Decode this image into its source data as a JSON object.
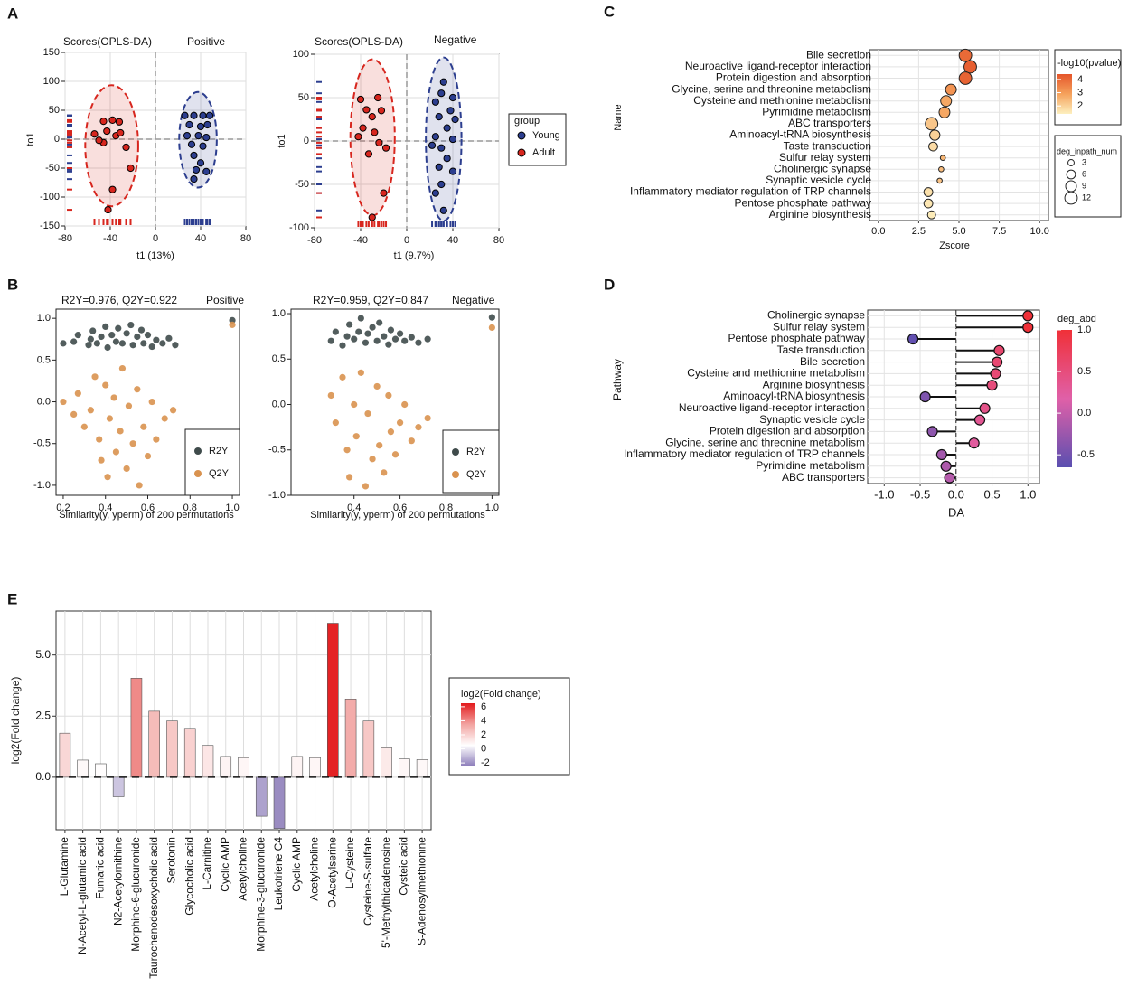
{
  "panel_labels": [
    "A",
    "B",
    "C",
    "D",
    "E"
  ],
  "chart_data": [
    {
      "type": "scatter",
      "title": "Scores(OPLS-DA)",
      "annotation": "Positive",
      "xlabel": "t1 (13%)",
      "ylabel": "to1",
      "xlim": [
        -80,
        80
      ],
      "xticks": [
        -80,
        -40,
        0,
        40,
        80
      ],
      "ylim": [
        -150,
        150
      ],
      "yticks": [
        -150,
        -100,
        -50,
        0,
        50,
        100,
        150
      ],
      "grid": true,
      "zero_lines": true,
      "ellipse": true,
      "rug": true,
      "marker_edge": "#000000",
      "series": [
        {
          "color": "#2c3e8f",
          "x": [
            26,
            34,
            42,
            48,
            30,
            40,
            46,
            28,
            38,
            45,
            32,
            42,
            34,
            40,
            36,
            34,
            45
          ],
          "values": [
            41,
            41,
            41,
            41,
            25,
            22,
            25,
            6,
            6,
            3,
            -9,
            -12,
            -28,
            -41,
            -53,
            -69,
            -56
          ]
        },
        {
          "color": "#d7261e",
          "x": [
            -46,
            -38,
            -32,
            -54,
            -43,
            -35,
            -31,
            -46,
            -26,
            -22,
            -38,
            -42,
            -50
          ],
          "values": [
            31,
            33,
            30,
            9,
            14,
            6,
            11,
            -6,
            -14,
            -50,
            -87,
            -122,
            -2
          ]
        }
      ]
    },
    {
      "type": "scatter",
      "title": "Scores(OPLS-DA)",
      "annotation": "Negative",
      "xlabel": "t1 (9.7%)",
      "ylabel": "to1",
      "xlim": [
        -80,
        80
      ],
      "xticks": [
        -80,
        -40,
        0,
        40,
        80
      ],
      "ylim": [
        -100,
        100
      ],
      "yticks": [
        -100,
        -50,
        0,
        50,
        100
      ],
      "grid": true,
      "zero_lines": true,
      "ellipse": true,
      "rug": true,
      "marker_edge": "#000000",
      "legend": "right",
      "legend_title": "group",
      "series": [
        {
          "name": "Young",
          "color": "#2c3e8f",
          "x": [
            32,
            30,
            40,
            25,
            38,
            28,
            42,
            35,
            25,
            40,
            30,
            22,
            35,
            28,
            40,
            30,
            25,
            32
          ],
          "values": [
            68,
            55,
            50,
            45,
            35,
            28,
            25,
            15,
            5,
            2,
            -8,
            -5,
            -20,
            -30,
            -35,
            -50,
            -60,
            -80
          ]
        },
        {
          "name": "Adult",
          "color": "#d7261e",
          "x": [
            -40,
            -25,
            -35,
            -22,
            -30,
            -38,
            -28,
            -42,
            -24,
            -18,
            -33,
            -20,
            -30
          ],
          "values": [
            48,
            50,
            36,
            35,
            28,
            15,
            10,
            5,
            -2,
            -8,
            -15,
            -60,
            -88
          ]
        }
      ]
    },
    {
      "type": "scatter",
      "title": "R2Y=0.976, Q2Y=0.922",
      "annotation": "Positive",
      "xlabel": "Similarity(y, yperm) of 200 permutations",
      "xlim": [
        0.166,
        1.034
      ],
      "xticks": [
        0.2,
        0.4,
        0.6,
        0.8,
        {
          "value": 1,
          "label": "1.0"
        }
      ],
      "ylim": [
        -1.12,
        1.11
      ],
      "yticks": [
        {
          "value": -1,
          "label": "-1.0"
        },
        -0.5,
        {
          "value": 0,
          "label": "0.0"
        },
        0.5,
        {
          "value": 1,
          "label": "1.0"
        }
      ],
      "grid": false,
      "legend": "lower right",
      "series": [
        {
          "name": "R2Y",
          "color": "#3f4b4b",
          "x": [
            0.2,
            0.25,
            0.27,
            0.32,
            0.33,
            0.34,
            0.36,
            0.38,
            0.4,
            0.41,
            0.43,
            0.45,
            0.46,
            0.48,
            0.5,
            0.52,
            0.53,
            0.55,
            0.57,
            0.58,
            0.6,
            0.62,
            0.64,
            0.67,
            0.7,
            0.73,
            1.0
          ],
          "values": [
            0.7,
            0.72,
            0.8,
            0.68,
            0.75,
            0.85,
            0.7,
            0.78,
            0.9,
            0.65,
            0.8,
            0.72,
            0.88,
            0.7,
            0.82,
            0.92,
            0.68,
            0.78,
            0.86,
            0.7,
            0.8,
            0.66,
            0.74,
            0.7,
            0.76,
            0.68,
            0.976
          ]
        },
        {
          "name": "Q2Y",
          "color": "#d9924f",
          "x": [
            0.2,
            0.25,
            0.27,
            0.3,
            0.33,
            0.35,
            0.37,
            0.38,
            0.4,
            0.41,
            0.42,
            0.44,
            0.45,
            0.47,
            0.48,
            0.5,
            0.51,
            0.53,
            0.55,
            0.56,
            0.58,
            0.6,
            0.62,
            0.64,
            0.68,
            0.72,
            1.0
          ],
          "values": [
            0.0,
            -0.15,
            0.1,
            -0.3,
            -0.1,
            0.3,
            -0.45,
            -0.7,
            0.2,
            -0.9,
            -0.2,
            0.05,
            -0.6,
            -0.35,
            0.4,
            -0.8,
            -0.05,
            -0.5,
            0.15,
            -1.0,
            -0.3,
            -0.65,
            0.0,
            -0.45,
            -0.2,
            -0.1,
            0.922
          ]
        }
      ]
    },
    {
      "type": "scatter",
      "title": "R2Y=0.959, Q2Y=0.847",
      "annotation": "Negative",
      "xlabel": "Similarity(y, yperm) of 200 permutations",
      "xlim": [
        0.126,
        1.03
      ],
      "xticks": [
        0.4,
        0.6,
        0.8,
        {
          "value": 1,
          "label": "1.0"
        }
      ],
      "ylim": [
        -1.0,
        1.05
      ],
      "yticks": [
        {
          "value": -1,
          "label": "-1.0"
        },
        -0.5,
        {
          "value": 0,
          "label": "0.0"
        },
        0.5,
        {
          "value": 1,
          "label": "1.0"
        }
      ],
      "grid": false,
      "legend": "lower right",
      "series": [
        {
          "name": "R2Y",
          "color": "#3f4b4b",
          "x": [
            0.3,
            0.32,
            0.35,
            0.37,
            0.38,
            0.4,
            0.42,
            0.43,
            0.45,
            0.46,
            0.48,
            0.5,
            0.51,
            0.53,
            0.55,
            0.56,
            0.58,
            0.6,
            0.62,
            0.65,
            0.68,
            0.72,
            1.0
          ],
          "values": [
            0.7,
            0.8,
            0.65,
            0.75,
            0.88,
            0.72,
            0.8,
            0.95,
            0.68,
            0.78,
            0.85,
            0.7,
            0.9,
            0.75,
            0.66,
            0.82,
            0.72,
            0.78,
            0.7,
            0.74,
            0.68,
            0.72,
            0.959
          ]
        },
        {
          "name": "Q2Y",
          "color": "#d9924f",
          "x": [
            0.3,
            0.32,
            0.35,
            0.37,
            0.38,
            0.4,
            0.41,
            0.43,
            0.45,
            0.46,
            0.48,
            0.5,
            0.51,
            0.53,
            0.55,
            0.56,
            0.58,
            0.6,
            0.62,
            0.65,
            0.68,
            0.72,
            1.0
          ],
          "values": [
            0.1,
            -0.2,
            0.3,
            -0.5,
            -0.8,
            0.0,
            -0.35,
            0.35,
            -0.9,
            -0.1,
            -0.6,
            0.2,
            -0.45,
            -0.75,
            0.1,
            -0.3,
            -0.55,
            -0.2,
            0.0,
            -0.4,
            -0.25,
            -0.15,
            0.847
          ]
        }
      ]
    },
    {
      "type": "bubble",
      "xlabel": "Zscore",
      "ylabel": "Name",
      "categories": [
        "Bile secretion",
        "Neuroactive ligand-receptor interaction",
        "Protein digestion and absorption",
        "Glycine, serine and threonine metabolism",
        "Cysteine and methionine metabolism",
        "Pyrimidine metabolism",
        "ABC transporters",
        "Aminoacyl-tRNA biosynthesis",
        "Taste transduction",
        "Sulfur relay system",
        "Cholinergic synapse",
        "Synaptic vesicle cycle",
        "Inflammatory mediator regulation of TRP channels",
        "Pentose phosphate pathway",
        "Arginine biosynthesis"
      ],
      "values": [
        5.4,
        5.7,
        5.4,
        4.5,
        4.2,
        4.1,
        3.3,
        3.5,
        3.4,
        4.0,
        3.9,
        3.8,
        3.1,
        3.1,
        3.3
      ],
      "sizes": [
        12,
        12,
        12,
        9,
        9,
        9,
        12,
        8,
        6,
        2,
        2,
        2,
        6,
        6,
        5
      ],
      "color_values": [
        4.0,
        4.2,
        4.1,
        3.2,
        2.8,
        2.8,
        2.2,
        2.0,
        1.8,
        2.5,
        2.4,
        2.3,
        1.7,
        1.6,
        1.5
      ],
      "xlim": [
        -0.55,
        10.55
      ],
      "xticks": [
        {
          "value": 0,
          "label": "0.0"
        },
        2.5,
        {
          "value": 5,
          "label": "5.0"
        },
        7.5,
        {
          "value": 10,
          "label": "10.0"
        }
      ],
      "grid": true,
      "color_legend_title": "-log10(pvalue)",
      "color_lim": [
        1.4,
        4.4
      ],
      "color_ticks": [
        4,
        3,
        2
      ],
      "colors": [
        "#fdf0bf",
        "#f5a25c",
        "#e5552a"
      ],
      "size_legend_title": "deg_inpath_num",
      "size_ticks": [
        3,
        6,
        9,
        12
      ]
    },
    {
      "type": "lollipop",
      "xlabel": "DA",
      "ylabel": "Pathway",
      "categories": [
        "Cholinergic synapse",
        "Sulfur relay system",
        "Pentose phosphate pathway",
        "Taste transduction",
        "Bile secretion",
        "Cysteine and methionine metabolism",
        "Arginine biosynthesis",
        "Aminoacyl-tRNA biosynthesis",
        "Neuroactive ligand-receptor interaction",
        "Synaptic vesicle cycle",
        "Protein digestion and absorption",
        "Glycine, serine and threonine metabolism",
        "Inflammatory mediator regulation of TRP channels",
        "Pyrimidine metabolism",
        "ABC transporters"
      ],
      "values": [
        1.0,
        1.0,
        -0.6,
        0.6,
        0.57,
        0.55,
        0.5,
        -0.43,
        0.4,
        0.33,
        -0.33,
        0.25,
        -0.2,
        -0.14,
        -0.09
      ],
      "xlim": [
        -1.23,
        1.16
      ],
      "xticks": [
        {
          "value": -1,
          "label": "-1.0"
        },
        -0.5,
        {
          "value": 0,
          "label": "0.0"
        },
        0.5,
        {
          "value": 1,
          "label": "1.0"
        }
      ],
      "grid": true,
      "color_legend_title": "deg_abd",
      "color_lim": [
        -0.65,
        1.0
      ],
      "colors": [
        "#5a4fb0",
        "#e060a8",
        "#f03038"
      ],
      "color_ticks": [
        {
          "value": 1,
          "label": "1.0"
        },
        0.5,
        {
          "value": 0,
          "label": "0.0"
        },
        -0.5
      ]
    },
    {
      "type": "bar",
      "ylabel": "log2(Fold change)",
      "categories": [
        "L-Glutamine",
        "N-Acetyl-L-glutamic acid",
        "Fumaric acid",
        "N2-Acetylornithine",
        "Morphine-6-glucuronide",
        "Taurochenodesoxycholic acid",
        "Serotonin",
        "Glycocholic acid",
        "L-Carnitine",
        "Cyclic AMP",
        "Acetylcholine",
        "Morphine-3-glucuronide",
        "Leukotriene C4",
        "Cyclic AMP",
        "Acetylcholine",
        "O-Acetylserine",
        "L-Cysteine",
        "Cysteine-S-sulfate",
        "5'-Methylthioadenosine",
        "Cysteic acid",
        "S-Adenosylmethionine"
      ],
      "values": [
        1.8,
        0.7,
        0.55,
        -0.8,
        4.05,
        2.7,
        2.3,
        2.0,
        1.3,
        0.85,
        0.8,
        -1.6,
        -2.1,
        0.85,
        0.8,
        6.3,
        3.2,
        2.3,
        1.2,
        0.75,
        0.72
      ],
      "ylim": [
        -2.15,
        6.8
      ],
      "yticks": [
        {
          "value": 0,
          "label": "0.0"
        },
        2.5,
        {
          "value": 5,
          "label": "5.0"
        }
      ],
      "grid": true,
      "color_legend_title": "log2(Fold change)",
      "color_lim": [
        -2.5,
        6.5
      ],
      "colors": [
        "#8a7ab8",
        "#ffffff",
        "#f2a3a0",
        "#e31a1c"
      ],
      "color_ticks": [
        6,
        4,
        2,
        0,
        -2
      ]
    }
  ]
}
